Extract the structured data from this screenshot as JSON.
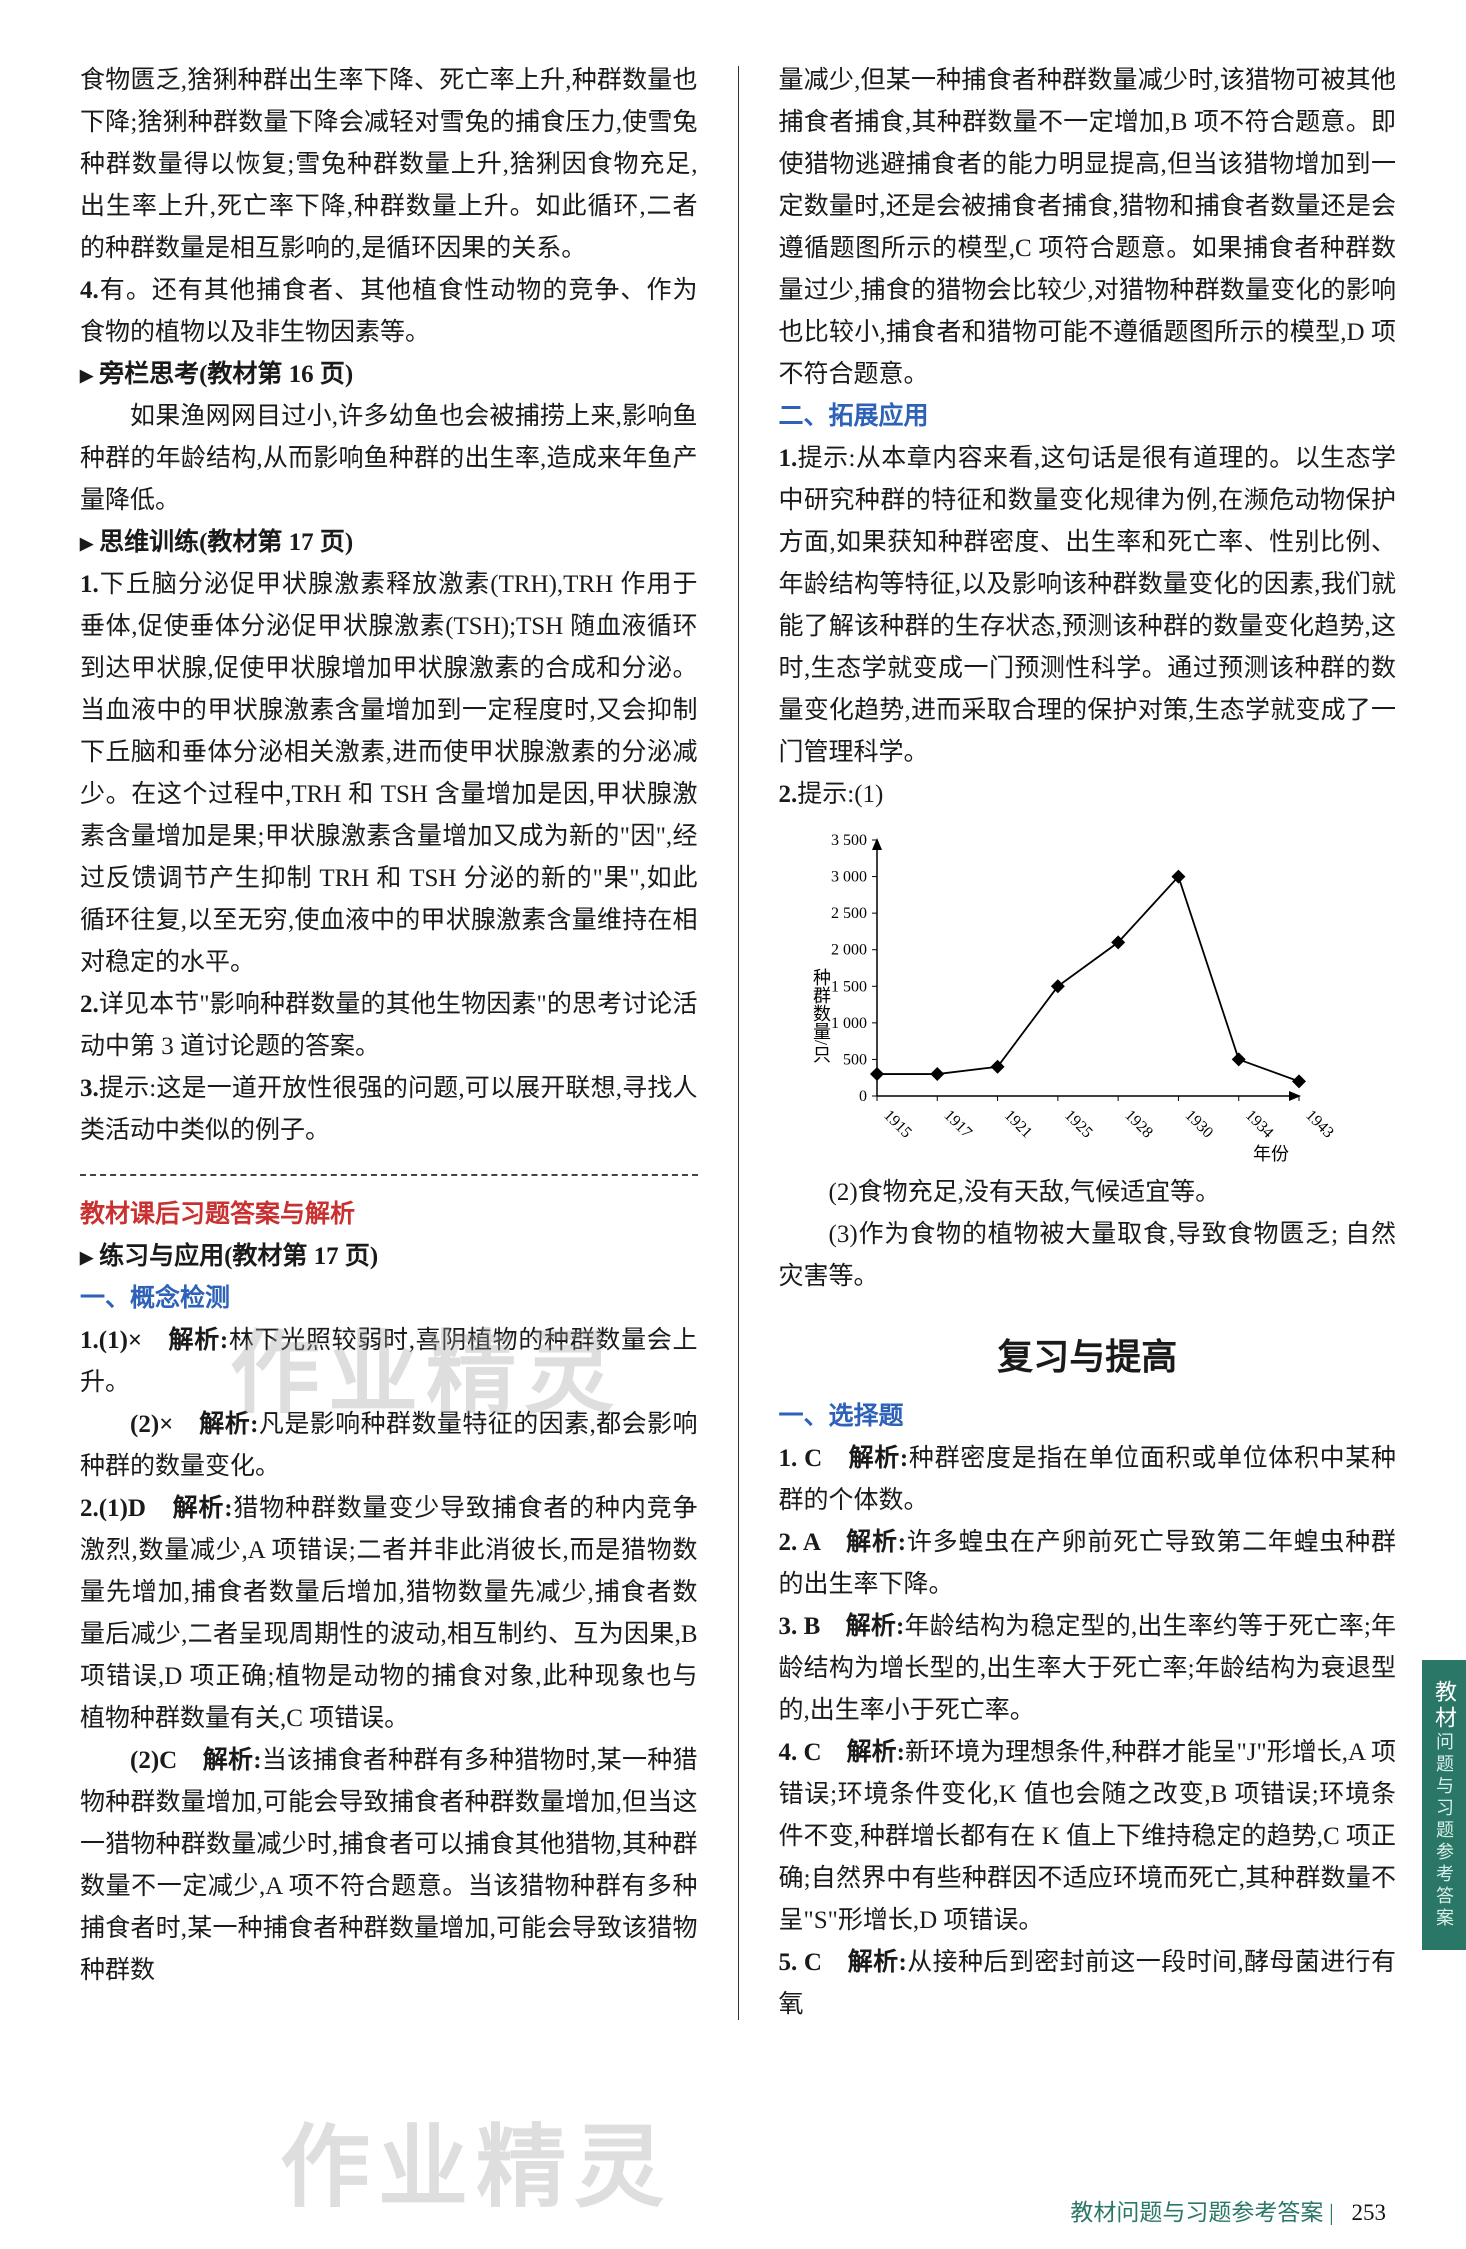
{
  "left": {
    "p1": "食物匮乏,猞猁种群出生率下降、死亡率上升,种群数量也下降;猞猁种群数量下降会减轻对雪兔的捕食压力,使雪兔种群数量得以恢复;雪兔种群数量上升,猞猁因食物充足,出生率上升,死亡率下降,种群数量上升。如此循环,二者的种群数量是相互影响的,是循环因果的关系。",
    "p2_label": "4.",
    "p2": "有。还有其他捕食者、其他植食性动物的竞争、作为食物的植物以及非生物因素等。",
    "h1": "旁栏思考(教材第 16 页)",
    "p3": "如果渔网网目过小,许多幼鱼也会被捕捞上来,影响鱼种群的年龄结构,从而影响鱼种群的出生率,造成来年鱼产量降低。",
    "h2": "思维训练(教材第 17 页)",
    "p4_label": "1.",
    "p4": "下丘脑分泌促甲状腺激素释放激素(TRH),TRH 作用于垂体,促使垂体分泌促甲状腺激素(TSH);TSH 随血液循环到达甲状腺,促使甲状腺增加甲状腺激素的合成和分泌。当血液中的甲状腺激素含量增加到一定程度时,又会抑制下丘脑和垂体分泌相关激素,进而使甲状腺激素的分泌减少。在这个过程中,TRH 和 TSH 含量增加是因,甲状腺激素含量增加是果;甲状腺激素含量增加又成为新的\"因\",经过反馈调节产生抑制 TRH 和 TSH 分泌的新的\"果\",如此循环往复,以至无穷,使血液中的甲状腺激素含量维持在相对稳定的水平。",
    "p5_label": "2.",
    "p5": "详见本节\"影响种群数量的其他生物因素\"的思考讨论活动中第 3 道讨论题的答案。",
    "p6_label": "3.",
    "p6": "提示:这是一道开放性很强的问题,可以展开联想,寻找人类活动中类似的例子。",
    "red": "教材课后习题答案与解析",
    "h3": "练习与应用(教材第 17 页)",
    "s1": "一、概念检测",
    "q1_1_label": "1.(1)×　解析:",
    "q1_1": "林下光照较弱时,喜阴植物的种群数量会上升。",
    "q1_2_label": "(2)×　解析:",
    "q1_2": "凡是影响种群数量特征的因素,都会影响种群的数量变化。",
    "q2_1_label": "2.(1)D　解析:",
    "q2_1": "猎物种群数量变少导致捕食者的种内竞争激烈,数量减少,A 项错误;二者并非此消彼长,而是猎物数量先增加,捕食者数量后增加,猎物数量先减少,捕食者数量后减少,二者呈现周期性的波动,相互制约、互为因果,B 项错误,D 项正确;植物是动物的捕食对象,此种现象也与植物种群数量有关,C 项错误。",
    "q2_2_label": "(2)C　解析:",
    "q2_2": "当该捕食者种群有多种猎物时,某一种猎物种群数量增加,可能会导致捕食者种群数量增加,但当这一猎物种群数量减少时,捕食者可以捕食其他猎物,其种群数量不一定减少,A 项不符合题意。当该猎物种群有多种捕食者时,某一种捕食者种群数量增加,可能会导致该猎物种群数"
  },
  "right": {
    "p1": "量减少,但某一种捕食者种群数量减少时,该猎物可被其他捕食者捕食,其种群数量不一定增加,B 项不符合题意。即使猎物逃避捕食者的能力明显提高,但当该猎物增加到一定数量时,还是会被捕食者捕食,猎物和捕食者数量还是会遵循题图所示的模型,C 项符合题意。如果捕食者种群数量过少,捕食的猎物会比较少,对猎物种群数量变化的影响也比较小,捕食者和猎物可能不遵循题图所示的模型,D 项不符合题意。",
    "s2": "二、拓展应用",
    "p2_label": "1.",
    "p2": "提示:从本章内容来看,这句话是很有道理的。以生态学中研究种群的特征和数量变化规律为例,在濒危动物保护方面,如果获知种群密度、出生率和死亡率、性别比例、年龄结构等特征,以及影响该种群数量变化的因素,我们就能了解该种群的生存状态,预测该种群的数量变化趋势,这时,生态学就变成一门预测性科学。通过预测该种群的数量变化趋势,进而采取合理的保护对策,生态学就变成了一门管理科学。",
    "p3_label": "2.",
    "p3": "提示:(1)",
    "chart": {
      "type": "line",
      "x_labels": [
        "1915",
        "1917",
        "1921",
        "1925",
        "1928",
        "1930",
        "1934",
        "1943"
      ],
      "y_ticks": [
        0,
        500,
        1000,
        1500,
        2000,
        2500,
        3000,
        3500
      ],
      "x_values": [
        0,
        1,
        2,
        3,
        4,
        5,
        6,
        7
      ],
      "y_values": [
        300,
        300,
        400,
        1500,
        2100,
        3000,
        500,
        200
      ],
      "y_axis_label": "种群数量/只",
      "x_axis_label": "年份",
      "ylim": [
        0,
        3500
      ],
      "line_color": "#000000",
      "marker": "diamond",
      "marker_size": 7,
      "grid": false,
      "axis_arrows": true,
      "background_color": "#ffffff",
      "font_size": 16
    },
    "p4": "(2)食物充足,没有天敌,气候适宜等。",
    "p5": "(3)作为食物的植物被大量取食,导致食物匮乏; 自然灾害等。",
    "title": "复习与提高",
    "s3": "一、选择题",
    "a1_label": "1. C　解析:",
    "a1": "种群密度是指在单位面积或单位体积中某种群的个体数。",
    "a2_label": "2. A　解析:",
    "a2": "许多蝗虫在产卵前死亡导致第二年蝗虫种群的出生率下降。",
    "a3_label": "3. B　解析:",
    "a3": "年龄结构为稳定型的,出生率约等于死亡率;年龄结构为增长型的,出生率大于死亡率;年龄结构为衰退型的,出生率小于死亡率。",
    "a4_label": "4. C　解析:",
    "a4": "新环境为理想条件,种群才能呈\"J\"形增长,A 项错误;环境条件变化,K 值也会随之改变,B 项错误;环境条件不变,种群增长都有在 K 值上下维持稳定的趋势,C 项正确;自然界中有些种群因不适应环境而死亡,其种群数量不呈\"S\"形增长,D 项错误。",
    "a5_label": "5. C　解析:",
    "a5": "从接种后到密封前这一段时间,酵母菌进行有氧"
  },
  "footer": {
    "text": "教材问题与习题参考答案",
    "page": "253"
  },
  "sidetab": {
    "main": "教材",
    "sub": "问题与习题参考答案"
  },
  "watermark": "作业精灵"
}
